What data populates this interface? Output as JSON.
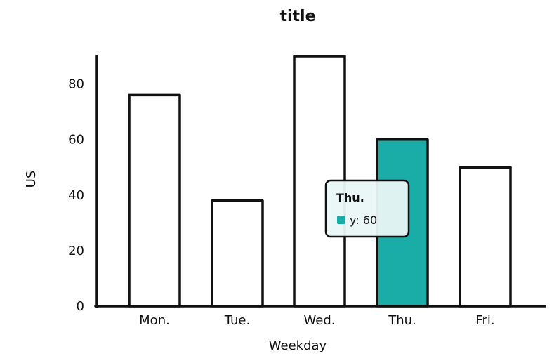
{
  "chart_data": {
    "type": "bar",
    "title": "title",
    "xlabel": "Weekday",
    "ylabel": "US",
    "categories": [
      "Mon.",
      "Tue.",
      "Wed.",
      "Thu.",
      "Fri."
    ],
    "values": [
      76,
      38,
      90,
      60,
      50
    ],
    "ylim": [
      0,
      90
    ],
    "yticks": [
      0,
      20,
      40,
      60,
      80
    ],
    "grid": false,
    "highlight_index": 3,
    "tooltip": {
      "title": "Thu.",
      "label": "y",
      "value": 60,
      "text": "y: 60"
    }
  },
  "colors": {
    "bar_fill": "#ffffff",
    "bar_stroke": "#111111",
    "highlight_fill": "#1aaca7",
    "tooltip_bg": "#eaf6f6",
    "tooltip_swatch": "#1aaca7",
    "axis": "#111111"
  }
}
